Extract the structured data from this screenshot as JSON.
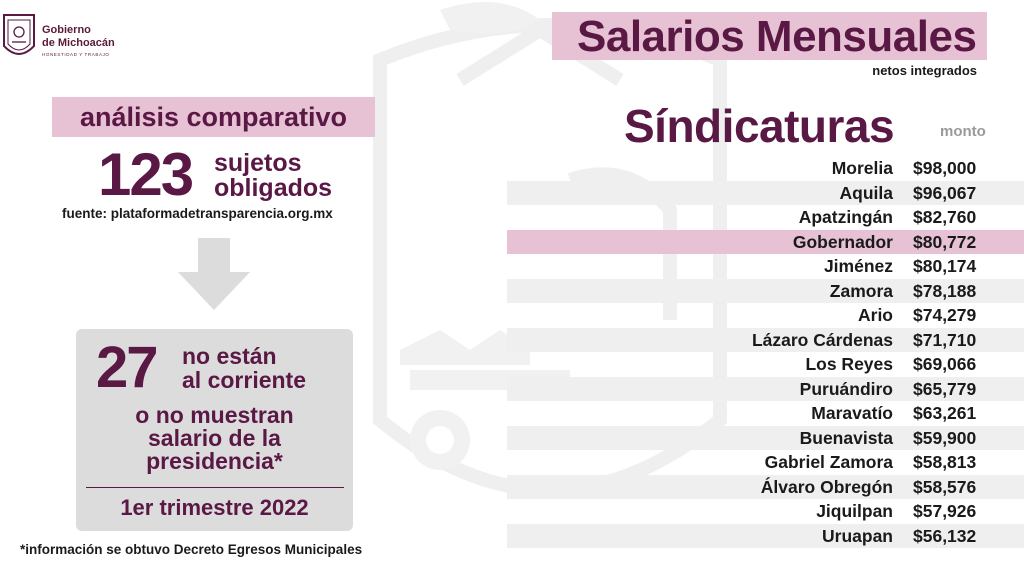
{
  "brand": {
    "line1": "Gobierno",
    "line2": "de Michoacán",
    "motto": "HONESTIDAD Y TRABAJO",
    "color": "#5a1845",
    "accent_bg": "#e7c2d4"
  },
  "header": {
    "title": "Salarios Mensuales",
    "subtitle": "netos integrados"
  },
  "analysis": {
    "label": "análisis comparativo",
    "count": "123",
    "count_label_line1": "sujetos",
    "count_label_line2": "obligados",
    "source": "fuente: plataformadetransparencia.org.mx",
    "arrow_icon": "down-arrow-icon"
  },
  "summary": {
    "count": "27",
    "line1": "no están",
    "line2": "al corriente",
    "line3": "o no muestran",
    "line4": "salario de la",
    "line5": "presidencia*",
    "period": "1er trimestre 2022"
  },
  "footnote": "*información se obtuvo Decreto Egresos Municipales",
  "list": {
    "title": "Síndicaturas",
    "amount_header": "monto",
    "rows": [
      {
        "name": "Morelia",
        "amount": "$98,000"
      },
      {
        "name": "Aquila",
        "amount": "$96,067"
      },
      {
        "name": "Apatzingán",
        "amount": "$82,760"
      },
      {
        "name": "Gobernador",
        "amount": "$80,772"
      },
      {
        "name": "Jiménez",
        "amount": "$80,174"
      },
      {
        "name": "Zamora",
        "amount": "$78,188"
      },
      {
        "name": "Ario",
        "amount": "$74,279"
      },
      {
        "name": "Lázaro Cárdenas",
        "amount": "$71,710"
      },
      {
        "name": "Los Reyes",
        "amount": "$69,066"
      },
      {
        "name": "Puruándiro",
        "amount": "$65,779"
      },
      {
        "name": "Maravatío",
        "amount": "$63,261"
      },
      {
        "name": "Buenavista",
        "amount": "$59,900"
      },
      {
        "name": "Gabriel Zamora",
        "amount": "$58,813"
      },
      {
        "name": "Álvaro Obregón",
        "amount": "$58,576"
      },
      {
        "name": "Jiquilpan",
        "amount": "$57,926"
      },
      {
        "name": "Uruapan",
        "amount": "$56,132"
      }
    ]
  }
}
